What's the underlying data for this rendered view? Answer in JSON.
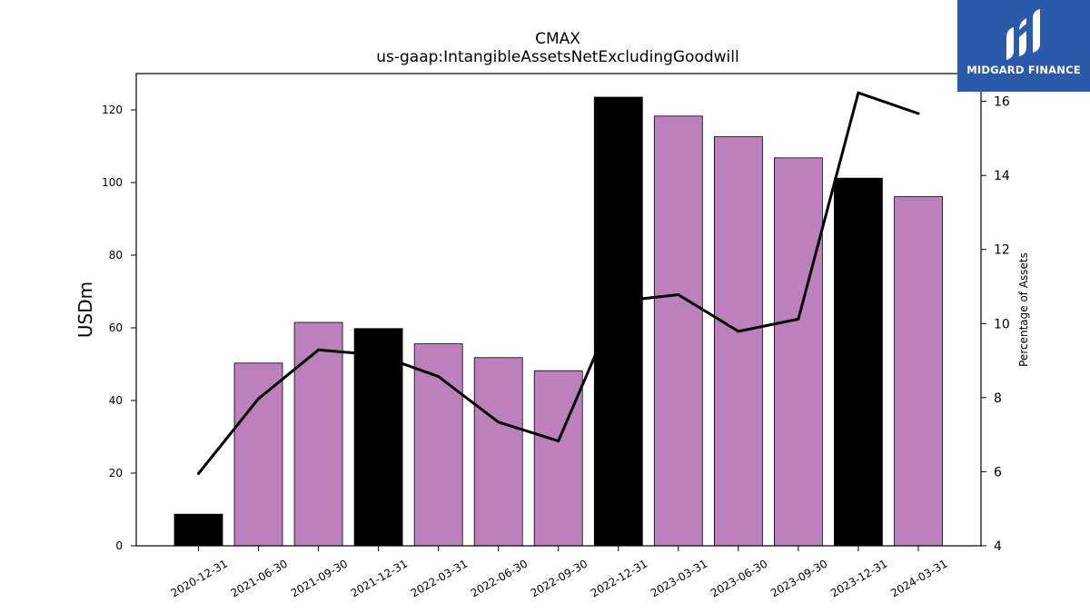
{
  "chart_data": {
    "type": "bar",
    "title": "CMAX",
    "subtitle": "us-gaap:IntangibleAssetsNetExcludingGoodwill",
    "ylabel": "USDm",
    "y2label": "Percentage of Assets",
    "categories": [
      "2020-12-31",
      "2021-06-30",
      "2021-09-30",
      "2021-12-31",
      "2022-03-31",
      "2022-06-30",
      "2022-09-30",
      "2022-12-31",
      "2023-03-31",
      "2023-06-30",
      "2023-09-30",
      "2023-12-31",
      "2024-03-31"
    ],
    "series": [
      {
        "values": [
          8.7,
          50.3,
          61.5,
          59.8,
          55.6,
          51.8,
          48.2,
          123.5,
          118.3,
          112.6,
          106.8,
          101.2,
          96.1
        ],
        "bar_colors": [
          "#000000",
          "#bc80bd",
          "#bc80bd",
          "#000000",
          "#bc80bd",
          "#bc80bd",
          "#bc80bd",
          "#000000",
          "#bc80bd",
          "#bc80bd",
          "#bc80bd",
          "#000000",
          "#bc80bd"
        ],
        "axis": "left"
      },
      {
        "type": "line",
        "values": [
          5.95,
          7.97,
          9.29,
          9.15,
          8.57,
          7.34,
          6.83,
          10.6,
          10.78,
          9.79,
          10.12,
          16.23,
          15.67
        ],
        "color": "#000000",
        "axis": "right"
      }
    ],
    "ylim": [
      0,
      130
    ],
    "y2lim": [
      4,
      16.75
    ],
    "yticks": [
      0,
      20,
      40,
      60,
      80,
      100,
      120
    ],
    "y2ticks": [
      4,
      6,
      8,
      10,
      12,
      14,
      16
    ],
    "grid": false
  },
  "logo": {
    "text": "MIDGARD FINANCE",
    "background": "#2c5aab"
  }
}
